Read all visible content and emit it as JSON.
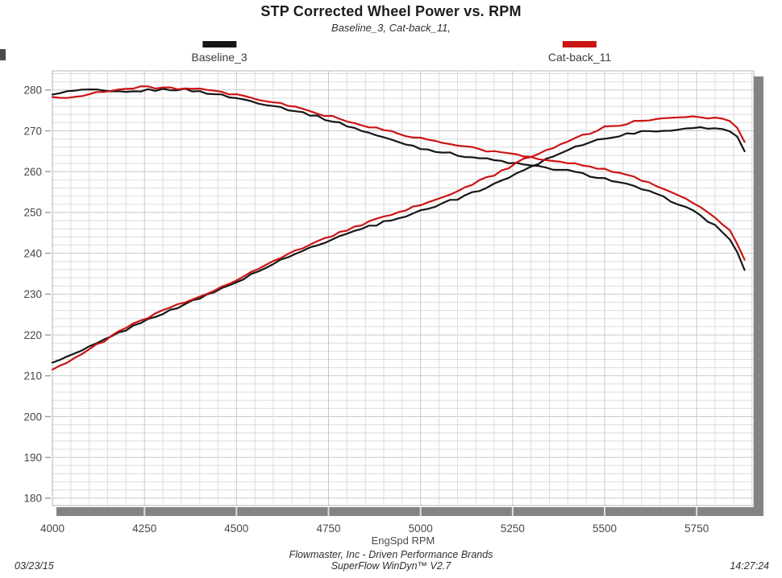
{
  "header": {
    "title": "STP Corrected Wheel Power vs. RPM",
    "subtitle": "Baseline_3, Cat-back_11,"
  },
  "footer": {
    "date": "03/23/15",
    "company": "Flowmaster, Inc - Driven Performance Brands",
    "software": "SuperFlow WinDyn™ V2.7",
    "time": "14:27:24"
  },
  "chart_data": {
    "type": "line",
    "title": "STP Corrected Wheel Power vs. RPM",
    "subtitle": "Baseline_3, Cat-back_11,",
    "xlabel": "EngSpd RPM",
    "ylabel": "",
    "x_range": [
      4000,
      5905
    ],
    "y_range": [
      178.2,
      284.7
    ],
    "x_ticks": [
      4000,
      4250,
      4500,
      4750,
      5000,
      5250,
      5500,
      5750
    ],
    "y_ticks": [
      180,
      190,
      200,
      210,
      220,
      230,
      240,
      250,
      260,
      270,
      280
    ],
    "grid": {
      "x_minor_step": 50,
      "y_minor_step": 2,
      "x_major_step": 250,
      "y_major_step": 10
    },
    "legend_position": "top",
    "colors": {
      "baseline": "#161616",
      "catback": "#cc1414",
      "grid_minor": "#dcdcdc",
      "grid_major": "#c8c8c8",
      "border": "#b5b5b5",
      "shadow_bar": "#838383",
      "tick_text": "#474747"
    },
    "series": [
      {
        "name": "Baseline_3",
        "color_key": "baseline",
        "curves": {
          "power_hp": [
            [
              4000,
              213.2
            ],
            [
              4050,
              214.9
            ],
            [
              4100,
              217.0
            ],
            [
              4200,
              221.3
            ],
            [
              4300,
              225.4
            ],
            [
              4400,
              228.9
            ],
            [
              4500,
              233.0
            ],
            [
              4600,
              237.4
            ],
            [
              4700,
              241.4
            ],
            [
              4800,
              244.9
            ],
            [
              4900,
              247.6
            ],
            [
              5000,
              250.4
            ],
            [
              5100,
              253.4
            ],
            [
              5200,
              256.9
            ],
            [
              5300,
              261.3
            ],
            [
              5400,
              265.5
            ],
            [
              5500,
              268.3
            ],
            [
              5600,
              269.7
            ],
            [
              5700,
              270.4
            ],
            [
              5750,
              270.6
            ],
            [
              5800,
              270.6
            ],
            [
              5830,
              270.5
            ],
            [
              5855,
              269.3
            ],
            [
              5875,
              266.5
            ],
            [
              5890,
              262.0
            ]
          ],
          "torque_lbft": [
            [
              4000,
              278.9
            ],
            [
              4050,
              279.7
            ],
            [
              4100,
              280.1
            ],
            [
              4150,
              279.5
            ],
            [
              4200,
              279.4
            ],
            [
              4250,
              279.9
            ],
            [
              4300,
              280.1
            ],
            [
              4350,
              280.2
            ],
            [
              4400,
              279.6
            ],
            [
              4450,
              278.9
            ],
            [
              4500,
              278.0
            ],
            [
              4600,
              276.2
            ],
            [
              4700,
              274.0
            ],
            [
              4800,
              271.3
            ],
            [
              4900,
              268.3
            ],
            [
              5000,
              265.8
            ],
            [
              5100,
              264.1
            ],
            [
              5200,
              262.8
            ],
            [
              5300,
              261.4
            ],
            [
              5400,
              260.2
            ],
            [
              5500,
              258.3
            ],
            [
              5600,
              255.8
            ],
            [
              5700,
              252.2
            ],
            [
              5750,
              249.8
            ],
            [
              5800,
              246.8
            ],
            [
              5840,
              243.5
            ],
            [
              5865,
              239.5
            ],
            [
              5890,
              233.5
            ]
          ]
        }
      },
      {
        "name": "Cat-back_11",
        "color_key": "catback",
        "curves": {
          "power_hp": [
            [
              4000,
              211.5
            ],
            [
              4050,
              213.9
            ],
            [
              4100,
              216.4
            ],
            [
              4200,
              221.8
            ],
            [
              4300,
              225.9
            ],
            [
              4400,
              229.4
            ],
            [
              4500,
              233.6
            ],
            [
              4600,
              238.0
            ],
            [
              4700,
              242.2
            ],
            [
              4800,
              245.8
            ],
            [
              4900,
              248.8
            ],
            [
              5000,
              251.8
            ],
            [
              5100,
              255.2
            ],
            [
              5200,
              259.3
            ],
            [
              5300,
              263.8
            ],
            [
              5400,
              267.5
            ],
            [
              5500,
              270.8
            ],
            [
              5600,
              272.5
            ],
            [
              5700,
              273.1
            ],
            [
              5750,
              273.3
            ],
            [
              5800,
              273.3
            ],
            [
              5830,
              273.1
            ],
            [
              5855,
              271.5
            ],
            [
              5875,
              268.5
            ],
            [
              5890,
              264.8
            ]
          ],
          "torque_lbft": [
            [
              4000,
              278.3
            ],
            [
              4040,
              277.9
            ],
            [
              4100,
              279.2
            ],
            [
              4200,
              280.3
            ],
            [
              4250,
              280.7
            ],
            [
              4300,
              280.6
            ],
            [
              4400,
              280.1
            ],
            [
              4450,
              279.5
            ],
            [
              4500,
              278.7
            ],
            [
              4600,
              277.0
            ],
            [
              4700,
              274.9
            ],
            [
              4800,
              272.4
            ],
            [
              4900,
              270.1
            ],
            [
              5000,
              268.1
            ],
            [
              5100,
              266.4
            ],
            [
              5200,
              264.9
            ],
            [
              5300,
              263.5
            ],
            [
              5400,
              262.3
            ],
            [
              5500,
              260.6
            ],
            [
              5600,
              258.0
            ],
            [
              5700,
              254.4
            ],
            [
              5750,
              251.9
            ],
            [
              5800,
              248.8
            ],
            [
              5840,
              245.5
            ],
            [
              5865,
              241.5
            ],
            [
              5890,
              236.4
            ]
          ]
        }
      }
    ]
  }
}
